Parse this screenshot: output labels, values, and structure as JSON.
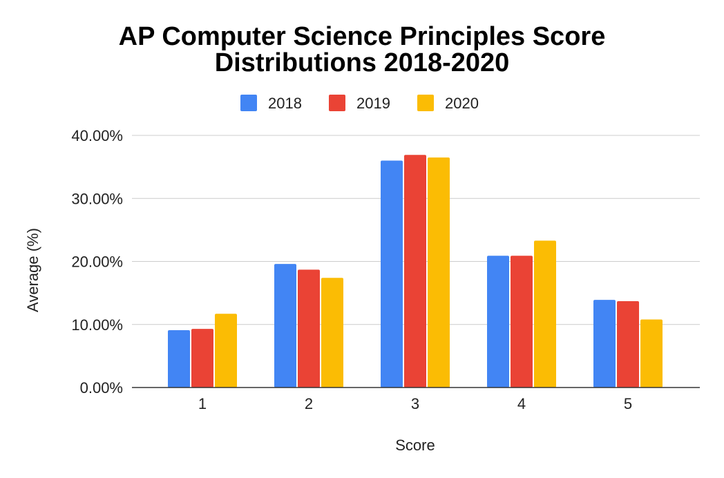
{
  "chart_data": {
    "type": "bar",
    "title_lines": [
      "AP Computer Science Principles Score",
      "Distributions 2018-2020"
    ],
    "xlabel": "Score",
    "ylabel": "Average (%)",
    "categories": [
      "1",
      "2",
      "3",
      "4",
      "5"
    ],
    "series": [
      {
        "name": "2018",
        "color": "#4285f4",
        "values": [
          9.1,
          19.6,
          36.0,
          20.9,
          13.9
        ]
      },
      {
        "name": "2019",
        "color": "#ea4335",
        "values": [
          9.3,
          18.7,
          36.9,
          20.9,
          13.7
        ]
      },
      {
        "name": "2020",
        "color": "#fbbc04",
        "values": [
          11.7,
          17.4,
          36.5,
          23.3,
          10.8
        ]
      }
    ],
    "ylim": [
      0,
      40
    ],
    "yticks": [
      {
        "value": 0,
        "label": "0.00%"
      },
      {
        "value": 10,
        "label": "10.00%"
      },
      {
        "value": 20,
        "label": "20.00%"
      },
      {
        "value": 30,
        "label": "30.00%"
      },
      {
        "value": 40,
        "label": "40.00%"
      }
    ],
    "grid": true,
    "legend_position": "top"
  }
}
